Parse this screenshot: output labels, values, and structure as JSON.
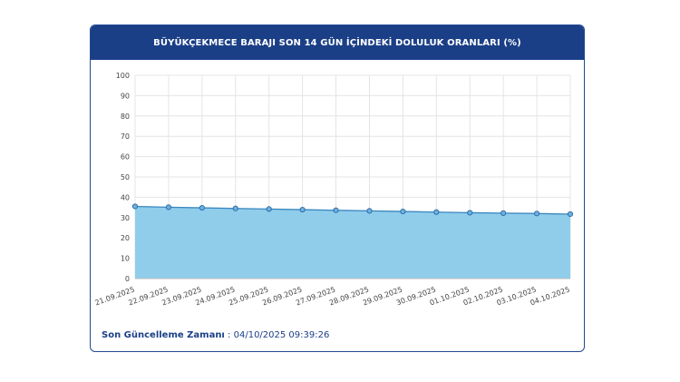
{
  "panel": {
    "title": "BÜYÜKÇEKMECE BARAJI SON 14 GÜN İÇİNDEKİ DOLULUK ORANLARI (%)"
  },
  "footer": {
    "label": "Son Güncelleme Zamanı",
    "separator": " : ",
    "value": "04/10/2025 09:39:26"
  },
  "colors": {
    "header_bg": "#1b3f87",
    "area_fill": "#8fcdeb",
    "line": "#3a86bf",
    "marker_fill": "#6fb0df",
    "marker_stroke": "#2c6fa8"
  },
  "chart_data": {
    "type": "area",
    "title": "BÜYÜKÇEKMECE BARAJI SON 14 GÜN İÇİNDEKİ DOLULUK ORANLARI (%)",
    "xlabel": "",
    "ylabel": "",
    "x": [
      "21.09.2025",
      "22.09.2025",
      "23.09.2025",
      "24.09.2025",
      "25.09.2025",
      "26.09.2025",
      "27.09.2025",
      "28.09.2025",
      "29.09.2025",
      "30.09.2025",
      "01.10.2025",
      "02.10.2025",
      "03.10.2025",
      "04.10.2025"
    ],
    "series": [
      {
        "values": [
          35.5,
          35.1,
          34.8,
          34.5,
          34.2,
          33.9,
          33.6,
          33.3,
          33.0,
          32.7,
          32.4,
          32.2,
          32.0,
          31.7
        ]
      }
    ],
    "ylim": [
      0,
      100
    ],
    "yticks": [
      0,
      10,
      20,
      30,
      40,
      50,
      60,
      70,
      80,
      90,
      100
    ],
    "grid": true,
    "legend": "none"
  }
}
